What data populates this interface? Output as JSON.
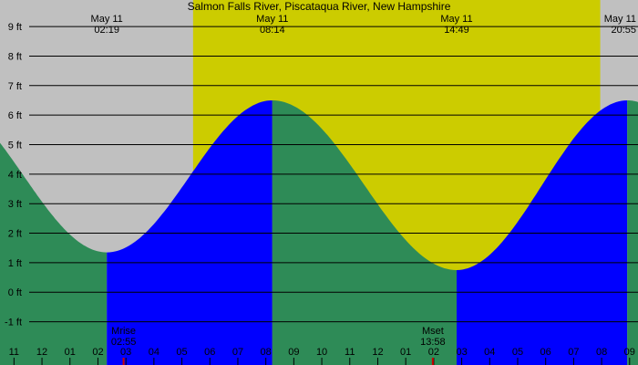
{
  "chart_data": {
    "type": "area",
    "title": "Salmon Falls River, Piscataqua River, New Hampshire",
    "ylabel": "",
    "xlabel": "",
    "ylim": [
      -1.6,
      9.9
    ],
    "grid": true,
    "y_ticks": [
      {
        "value": 9,
        "label": "9 ft"
      },
      {
        "value": 8,
        "label": "8 ft"
      },
      {
        "value": 7,
        "label": "7 ft"
      },
      {
        "value": 6,
        "label": "6 ft"
      },
      {
        "value": 5,
        "label": "5 ft"
      },
      {
        "value": 4,
        "label": "4 ft"
      },
      {
        "value": 3,
        "label": "3 ft"
      },
      {
        "value": 2,
        "label": "2 ft"
      },
      {
        "value": 1,
        "label": "1 ft"
      },
      {
        "value": 0,
        "label": "0 ft"
      },
      {
        "value": -1,
        "label": "-1 ft"
      }
    ],
    "x_range_hours": [
      -1.5,
      21.3
    ],
    "x_ticks": [
      {
        "hour": -1,
        "label": "11"
      },
      {
        "hour": 0,
        "label": "12"
      },
      {
        "hour": 1,
        "label": "01"
      },
      {
        "hour": 2,
        "label": "02"
      },
      {
        "hour": 3,
        "label": "03"
      },
      {
        "hour": 4,
        "label": "04"
      },
      {
        "hour": 5,
        "label": "05"
      },
      {
        "hour": 6,
        "label": "06"
      },
      {
        "hour": 7,
        "label": "07"
      },
      {
        "hour": 8,
        "label": "08"
      },
      {
        "hour": 9,
        "label": "09"
      },
      {
        "hour": 10,
        "label": "10"
      },
      {
        "hour": 11,
        "label": "11"
      },
      {
        "hour": 12,
        "label": "12"
      },
      {
        "hour": 13,
        "label": "01"
      },
      {
        "hour": 14,
        "label": "02"
      },
      {
        "hour": 15,
        "label": "03"
      },
      {
        "hour": 16,
        "label": "04"
      },
      {
        "hour": 17,
        "label": "05"
      },
      {
        "hour": 18,
        "label": "06"
      },
      {
        "hour": 19,
        "label": "07"
      },
      {
        "hour": 20,
        "label": "08"
      },
      {
        "hour": 21,
        "label": "09"
      }
    ],
    "tide_events": [
      {
        "type": "low",
        "time": "02:19",
        "date": "May 11",
        "hour": 2.317,
        "height_ft": 1.35
      },
      {
        "type": "high",
        "time": "08:14",
        "date": "May 11",
        "hour": 8.233,
        "height_ft": 6.5
      },
      {
        "type": "low",
        "time": "14:49",
        "date": "May 11",
        "hour": 14.817,
        "height_ft": 0.75
      },
      {
        "type": "high",
        "time": "20:55",
        "date": "May 11",
        "hour": 20.917,
        "height_ft": 6.5
      }
    ],
    "daylight": {
      "start_hour": 5.4,
      "end_hour": 19.95
    },
    "moon_events": [
      {
        "label": "Mrise",
        "time": "02:55",
        "hour": 2.917
      },
      {
        "label": "Mset",
        "time": "13:58",
        "hour": 13.967
      }
    ],
    "colors": {
      "night": "#c0c0c0",
      "day": "#cccc00",
      "falling": "#2e8b57",
      "rising": "#0000ff",
      "grid": "#000000",
      "moon_tick": "#cc0000"
    }
  }
}
